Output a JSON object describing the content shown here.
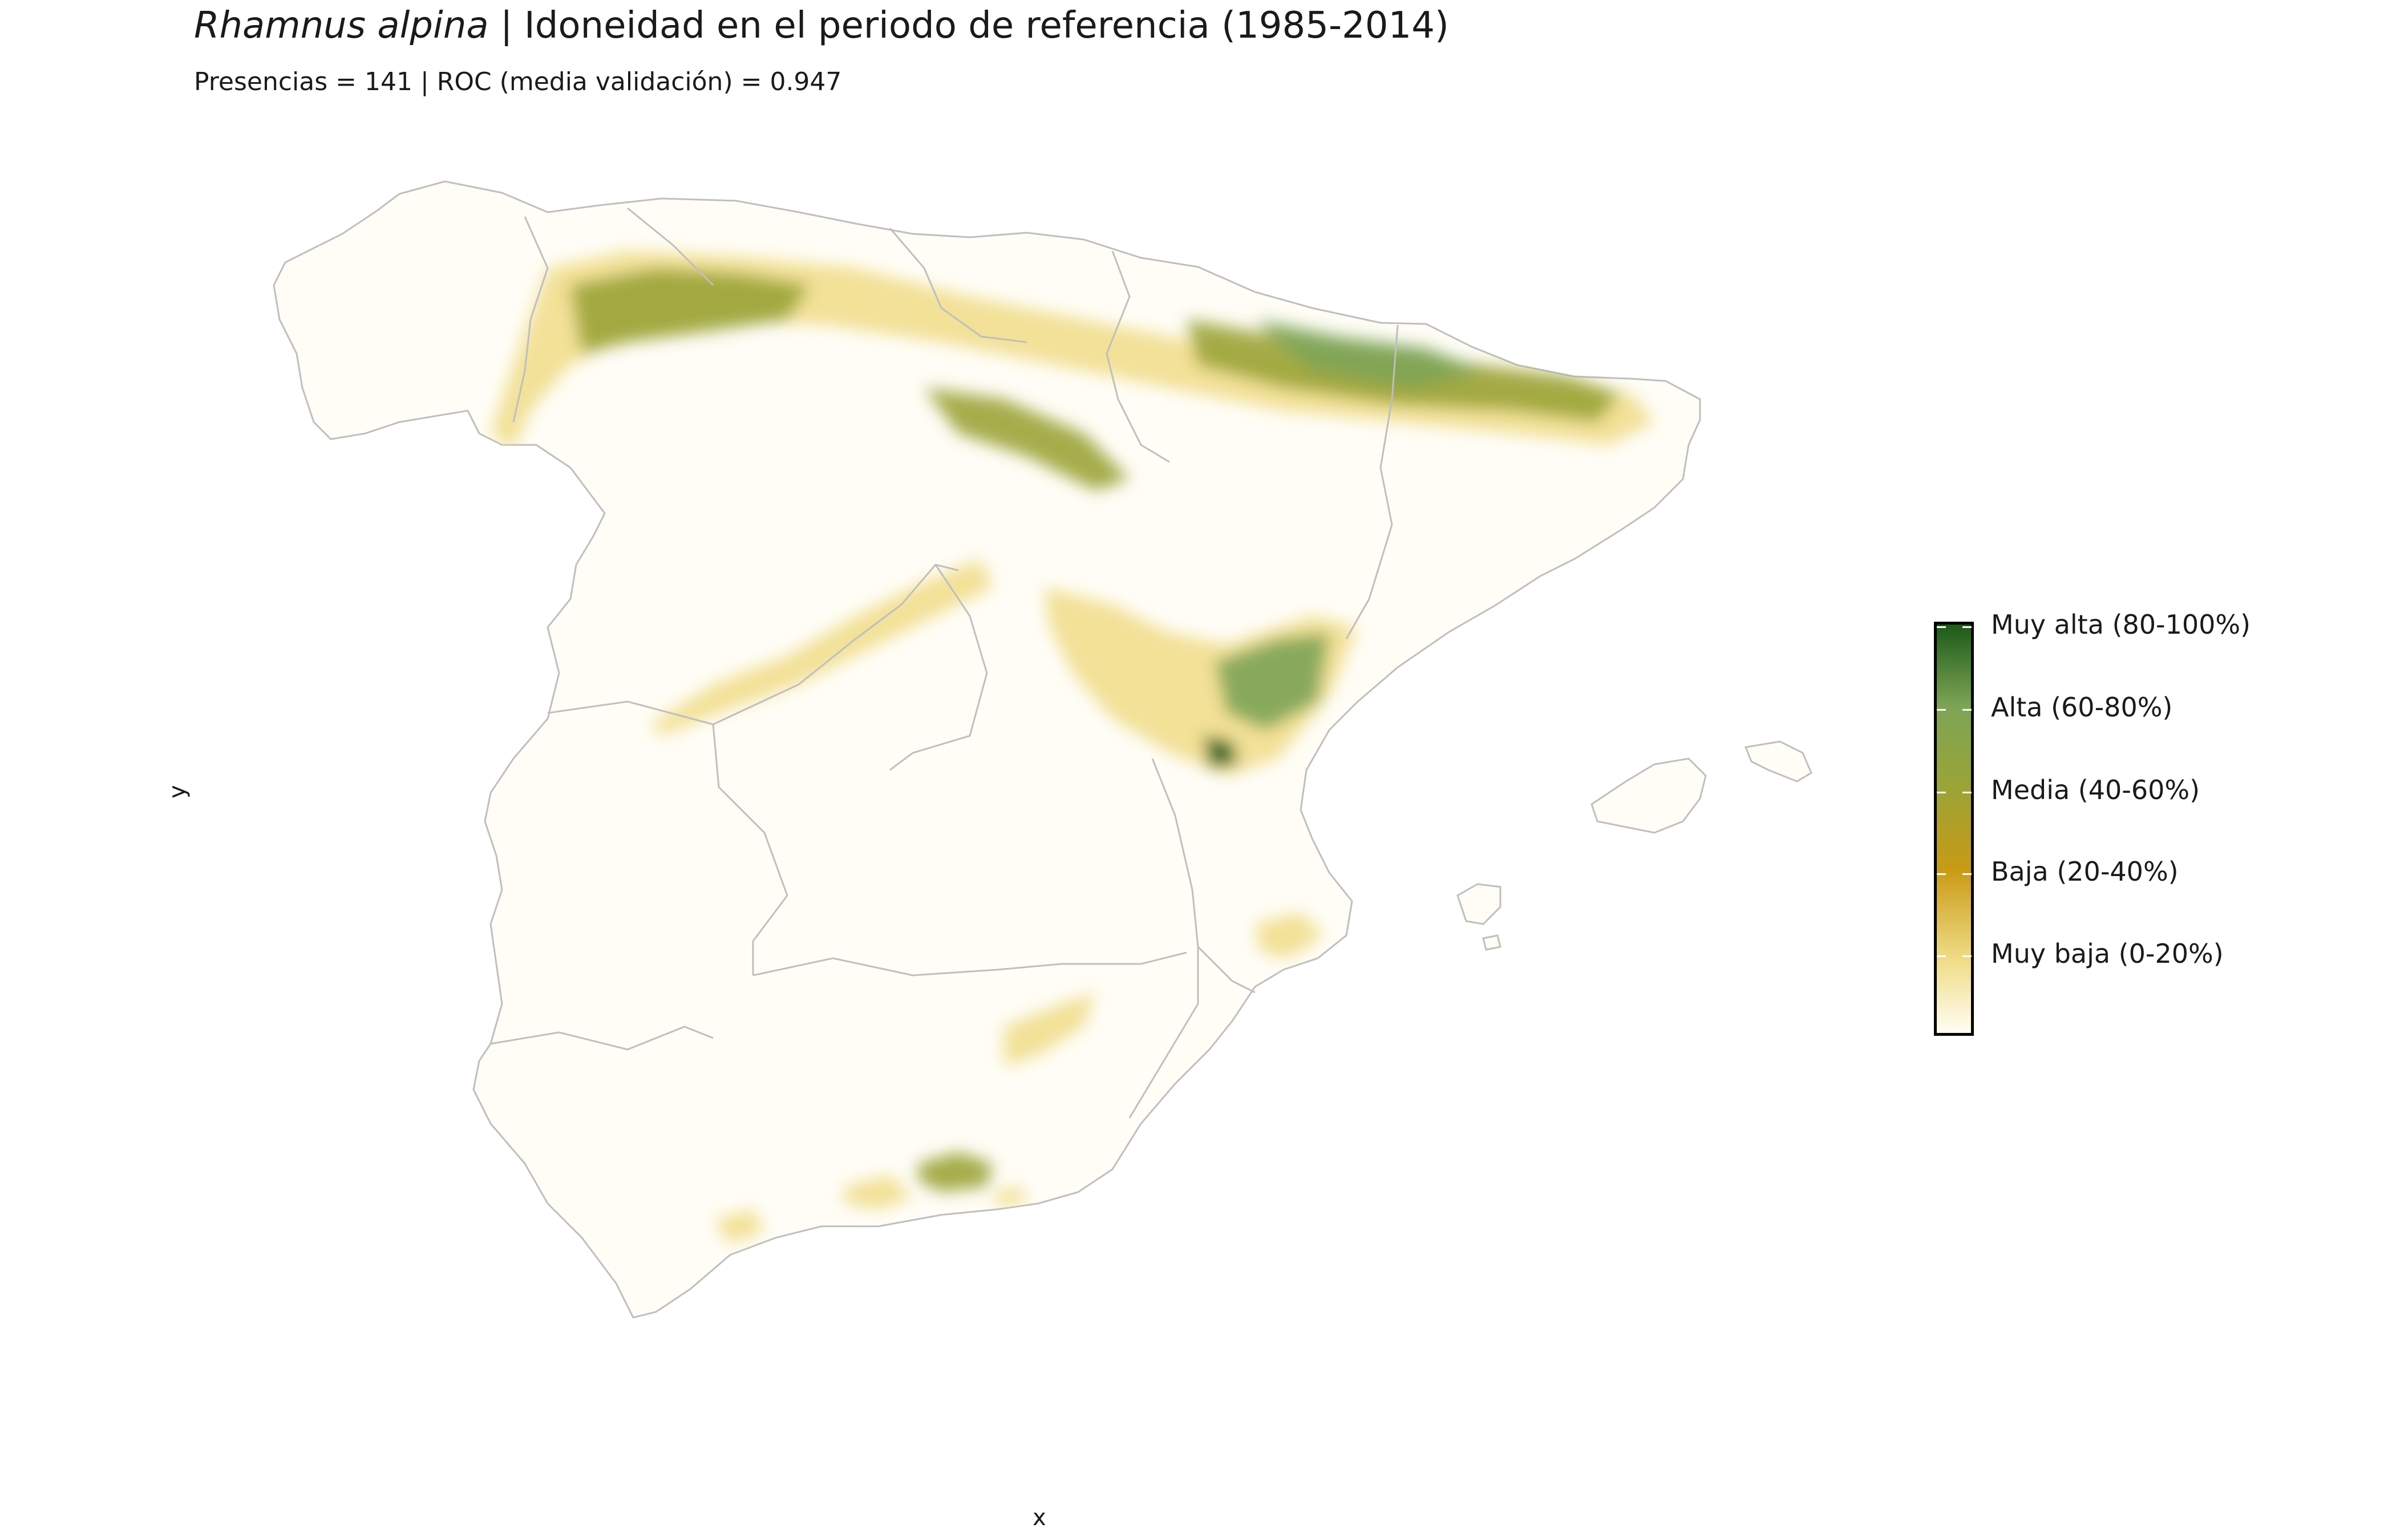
{
  "title": {
    "species": "Rhamnus alpina",
    "separator": " | ",
    "text": "Idoneidad en el periodo de referencia (1985-2014)"
  },
  "subtitle": "Presencias = 141  |  ROC (media validación) = 0.947",
  "axes": {
    "xlabel": "x",
    "ylabel": "y"
  },
  "legend": {
    "colors": [
      "#fffdf4",
      "#f0dc86",
      "#c99a16",
      "#9ba436",
      "#7da456",
      "#1b5a17"
    ],
    "items": [
      {
        "label": "Muy alta (80-100%)",
        "level": 0.9
      },
      {
        "label": "Alta (60-80%)",
        "level": 0.7
      },
      {
        "label": "Media (40-60%)",
        "level": 0.5
      },
      {
        "label": "Baja (20-40%)",
        "level": 0.3
      },
      {
        "label": "Muy baja (0-20%)",
        "level": 0.1
      }
    ]
  },
  "colors": {
    "land": "#fffdf6",
    "border": "#bfbfbf"
  }
}
